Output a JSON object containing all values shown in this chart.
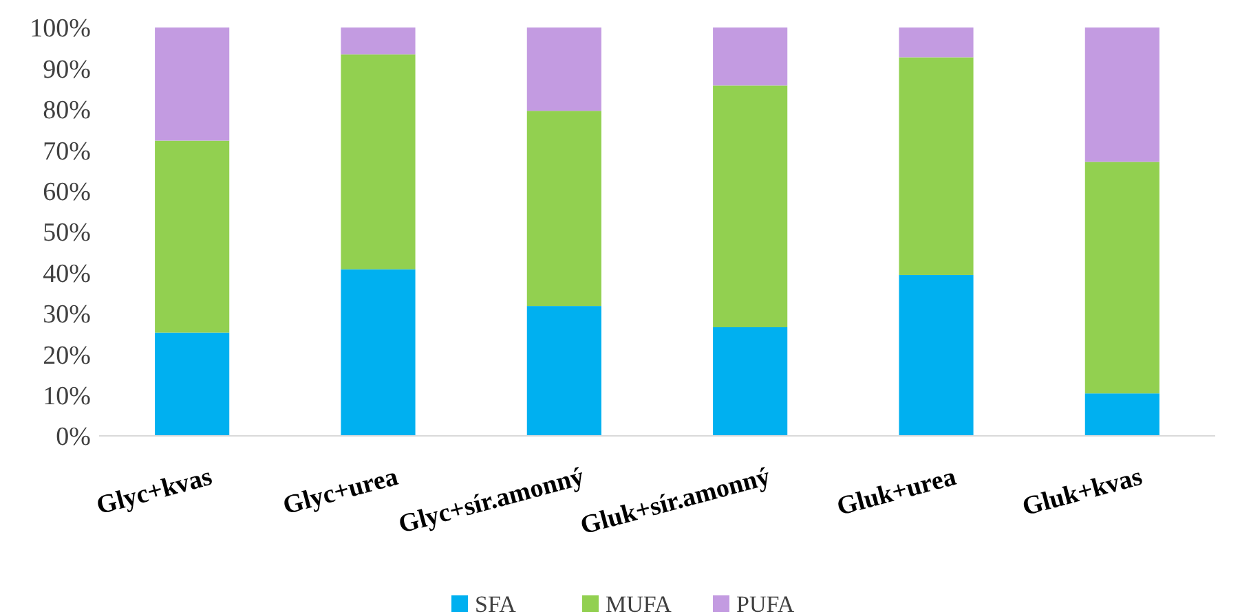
{
  "chart_data": {
    "type": "bar",
    "stacked": true,
    "categories": [
      "Glyc+kvas",
      "Glyc+urea",
      "Glyc+sír.amonný",
      "Gluk+sír.amonný",
      "Gluk+urea",
      "Gluk+kvas"
    ],
    "series": [
      {
        "name": "SFA",
        "color": "#00b0f0",
        "values": [
          25.3,
          40.8,
          31.8,
          26.6,
          39.4,
          10.4
        ]
      },
      {
        "name": "MUFA",
        "color": "#92d050",
        "values": [
          47.0,
          52.6,
          47.8,
          59.2,
          53.3,
          56.7
        ]
      },
      {
        "name": "PUFA",
        "color": "#c39be1",
        "values": [
          27.7,
          6.6,
          20.4,
          14.2,
          7.3,
          32.9
        ]
      }
    ],
    "ylim": [
      0,
      100
    ],
    "yticks": [
      {
        "value": 0,
        "label": "0%"
      },
      {
        "value": 10,
        "label": "10%"
      },
      {
        "value": 20,
        "label": "20%"
      },
      {
        "value": 30,
        "label": "30%"
      },
      {
        "value": 40,
        "label": "40%"
      },
      {
        "value": 50,
        "label": "50%"
      },
      {
        "value": 60,
        "label": "60%"
      },
      {
        "value": 70,
        "label": "70%"
      },
      {
        "value": 80,
        "label": "80%"
      },
      {
        "value": 90,
        "label": "90%"
      },
      {
        "value": 100,
        "label": "100%"
      }
    ],
    "grid": false,
    "legend": "bottom"
  }
}
